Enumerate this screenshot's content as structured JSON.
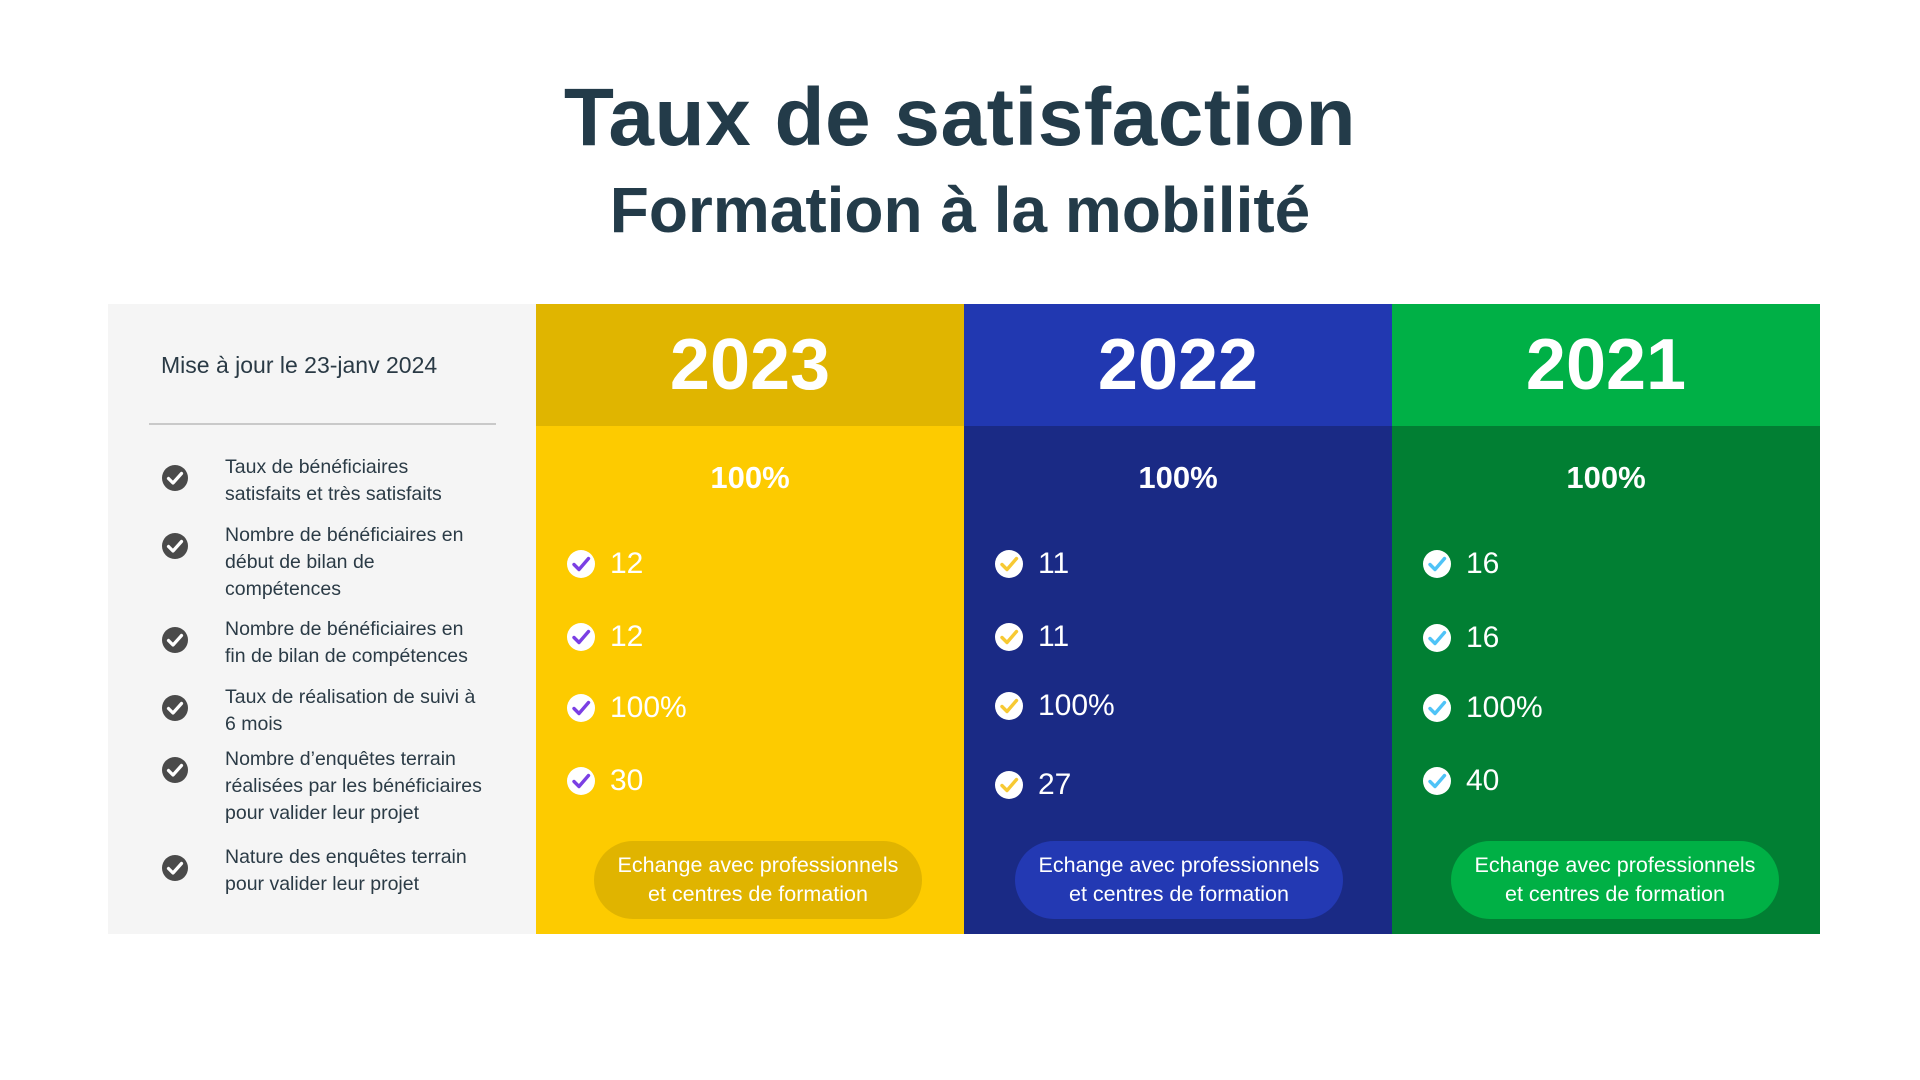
{
  "header": {
    "title": "Taux de satisfaction",
    "subtitle": "Formation à la mobilité"
  },
  "table": {
    "updated": "Mise à jour le 23-janv 2024",
    "criteria": [
      [
        "Taux de bénéficiaires",
        "satisfaits et très satisfaits"
      ],
      [
        "Nombre de bénéficiaires en",
        "début de bilan de",
        "compétences"
      ],
      [
        "Nombre de bénéficiaires en",
        "fin de bilan de compétences"
      ],
      [
        "Taux de réalisation de suivi à",
        "6 mois"
      ],
      [
        "Nombre d’enquêtes terrain",
        "réalisées par les bénéficiaires",
        "pour valider leur projet"
      ],
      [
        "Nature des enquêtes terrain",
        "pour valider leur projet"
      ]
    ],
    "columns": [
      {
        "year": "2023",
        "satisfaction": "100%",
        "values": [
          "12",
          "12",
          "100%",
          "30"
        ],
        "nature": [
          "Echange avec professionnels",
          "et centres de formation"
        ],
        "colors": {
          "body": "#fdcb00",
          "header": "#e0b500",
          "check": "#7b3fe4"
        }
      },
      {
        "year": "2022",
        "satisfaction": "100%",
        "values": [
          "11",
          "11",
          "100%",
          "27"
        ],
        "nature": [
          "Echange avec professionnels",
          "et centres de formation"
        ],
        "colors": {
          "body": "#1a2a85",
          "header": "#2138b1",
          "check": "#f7c933"
        }
      },
      {
        "year": "2021",
        "satisfaction": "100%",
        "values": [
          "16",
          "16",
          "100%",
          "40"
        ],
        "nature": [
          "Echange avec professionnels",
          "et centres de formation"
        ],
        "colors": {
          "body": "#017f33",
          "header": "#00b046",
          "check": "#4fc3f7"
        }
      }
    ]
  },
  "icons": {
    "criteria_check": "check-circle-dark-icon",
    "value_check": "check-circle-white-icon"
  }
}
